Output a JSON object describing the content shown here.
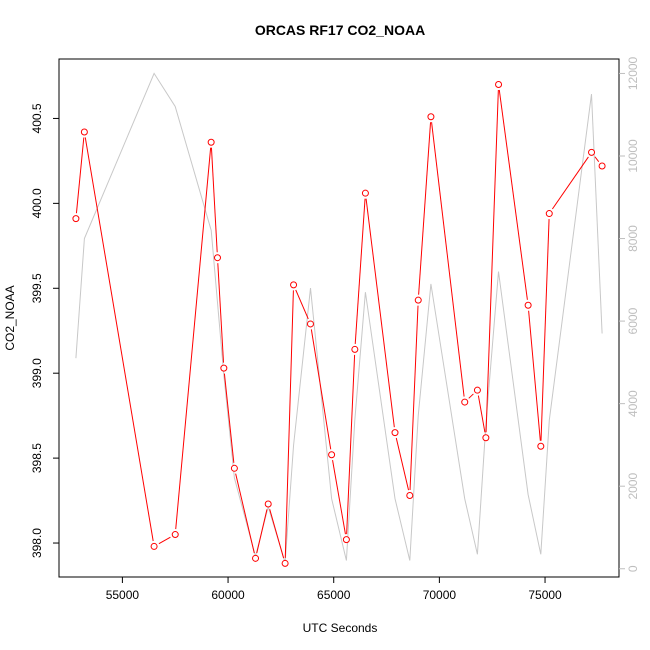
{
  "chart_data": {
    "type": "line",
    "title": "ORCAS RF17 CO2_NOAA",
    "xlabel": "UTC Seconds",
    "ylabel": "CO2_NOAA",
    "xlim": [
      52000,
      78500
    ],
    "ylim": [
      397.8,
      400.85
    ],
    "y2lim": [
      -200,
      12350
    ],
    "x_ticks": [
      55000,
      60000,
      65000,
      70000,
      75000
    ],
    "y_ticks": [
      398.0,
      398.5,
      399.0,
      399.5,
      400.0,
      400.5
    ],
    "y2_ticks": [
      0,
      2000,
      4000,
      6000,
      8000,
      10000,
      12000
    ],
    "colors": {
      "co2": "#ff0000",
      "altitude": "#c8c8c8",
      "axis": "#000000",
      "right_axis": "#bebebe"
    },
    "series": [
      {
        "axis": "left",
        "style": "line+points",
        "x": [
          52800,
          53200,
          56500,
          57500,
          59200,
          59500,
          59800,
          60300,
          61300,
          61900,
          62700,
          63100,
          63900,
          64900,
          65600,
          66000,
          66500,
          67900,
          68600,
          69000,
          69600,
          71200,
          71800,
          72200,
          72800,
          74200,
          74800,
          75200,
          77200,
          77700
        ],
        "y": [
          399.91,
          400.42,
          397.98,
          398.05,
          400.36,
          399.68,
          399.03,
          398.44,
          397.91,
          398.23,
          397.88,
          399.52,
          399.29,
          398.52,
          398.02,
          399.14,
          400.06,
          398.65,
          398.28,
          399.43,
          400.51,
          398.83,
          398.9,
          398.62,
          400.7,
          399.4,
          398.57,
          399.94,
          400.3,
          400.22
        ]
      },
      {
        "axis": "right",
        "style": "line",
        "x": [
          52800,
          53200,
          56500,
          57500,
          59200,
          59800,
          60300,
          61300,
          61900,
          62700,
          63100,
          63900,
          64900,
          65600,
          66000,
          66500,
          67900,
          68600,
          69000,
          69600,
          71200,
          71800,
          72200,
          72800,
          74200,
          74800,
          75200,
          77200,
          77700
        ],
        "y": [
          5100,
          8000,
          12000,
          11200,
          8200,
          4700,
          2200,
          300,
          1500,
          150,
          3000,
          6800,
          1700,
          200,
          3600,
          6700,
          1700,
          200,
          3700,
          6900,
          1700,
          350,
          3500,
          7200,
          1800,
          350,
          3600,
          11500,
          5700
        ]
      }
    ]
  }
}
